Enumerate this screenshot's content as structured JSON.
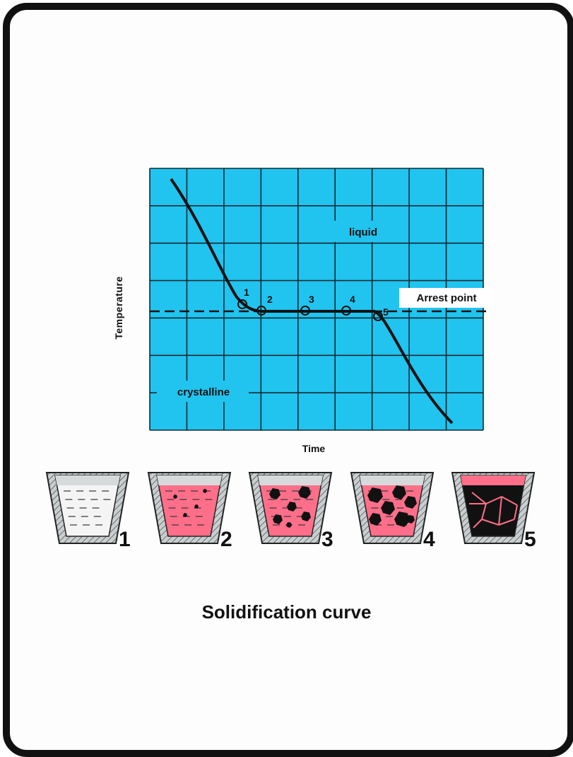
{
  "title": "Solidification curve",
  "chart_data": {
    "type": "line",
    "xlabel": "Time",
    "ylabel": "Temperature",
    "annotations": {
      "liquid": "liquid",
      "crystalline": "crystalline",
      "arrest": "Arrest point"
    },
    "points": [
      {
        "label": "1"
      },
      {
        "label": "2"
      },
      {
        "label": "3"
      },
      {
        "label": "4"
      },
      {
        "label": "5"
      }
    ],
    "grid": true,
    "background": "#21c4ef"
  },
  "crucibles": [
    {
      "label": "1",
      "state": "liquid"
    },
    {
      "label": "2",
      "state": "nucleation"
    },
    {
      "label": "3",
      "state": "growing crystals"
    },
    {
      "label": "4",
      "state": "mostly solid"
    },
    {
      "label": "5",
      "state": "solid grains"
    }
  ],
  "colors": {
    "plot_bg": "#21c4ef",
    "liquid_fill": "#ff6f8a",
    "crucible_wall": "#9aa3a5",
    "ink": "#111111"
  }
}
